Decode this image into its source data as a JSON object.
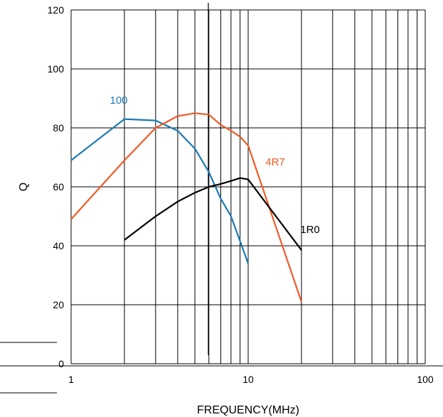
{
  "chart_data": {
    "type": "line",
    "xlabel": "FREQUENCY(MHz)",
    "ylabel": "Q",
    "x_scale": "log",
    "xlim": [
      1,
      100
    ],
    "ylim": [
      0,
      120
    ],
    "x_ticks": [
      1,
      10,
      100
    ],
    "x_tick_labels": [
      "1",
      "10",
      "100"
    ],
    "y_ticks": [
      0,
      20,
      40,
      60,
      80,
      100,
      120
    ],
    "y_tick_labels": [
      "0",
      "20",
      "40",
      "60",
      "80",
      "100",
      "120"
    ],
    "grid": true,
    "series": [
      {
        "name": "100",
        "color": "#1a7ab5",
        "x": [
          1,
          2,
          3,
          4,
          5,
          6,
          7,
          8,
          10
        ],
        "y": [
          69,
          83,
          82.5,
          79,
          73,
          65,
          56,
          50,
          34
        ]
      },
      {
        "name": "4R7",
        "color": "#f05a28",
        "x": [
          1,
          2,
          3,
          4,
          5,
          6,
          7,
          8,
          9,
          10,
          20
        ],
        "y": [
          49,
          69,
          80,
          84,
          85,
          84.5,
          81,
          79,
          77,
          74,
          21
        ]
      },
      {
        "name": "1R0",
        "color": "#000000",
        "x": [
          2,
          3,
          4,
          5,
          6,
          7,
          8,
          9,
          10,
          20
        ],
        "y": [
          42,
          50,
          55,
          58,
          60,
          61,
          62,
          63,
          62.5,
          38.5
        ]
      }
    ]
  }
}
